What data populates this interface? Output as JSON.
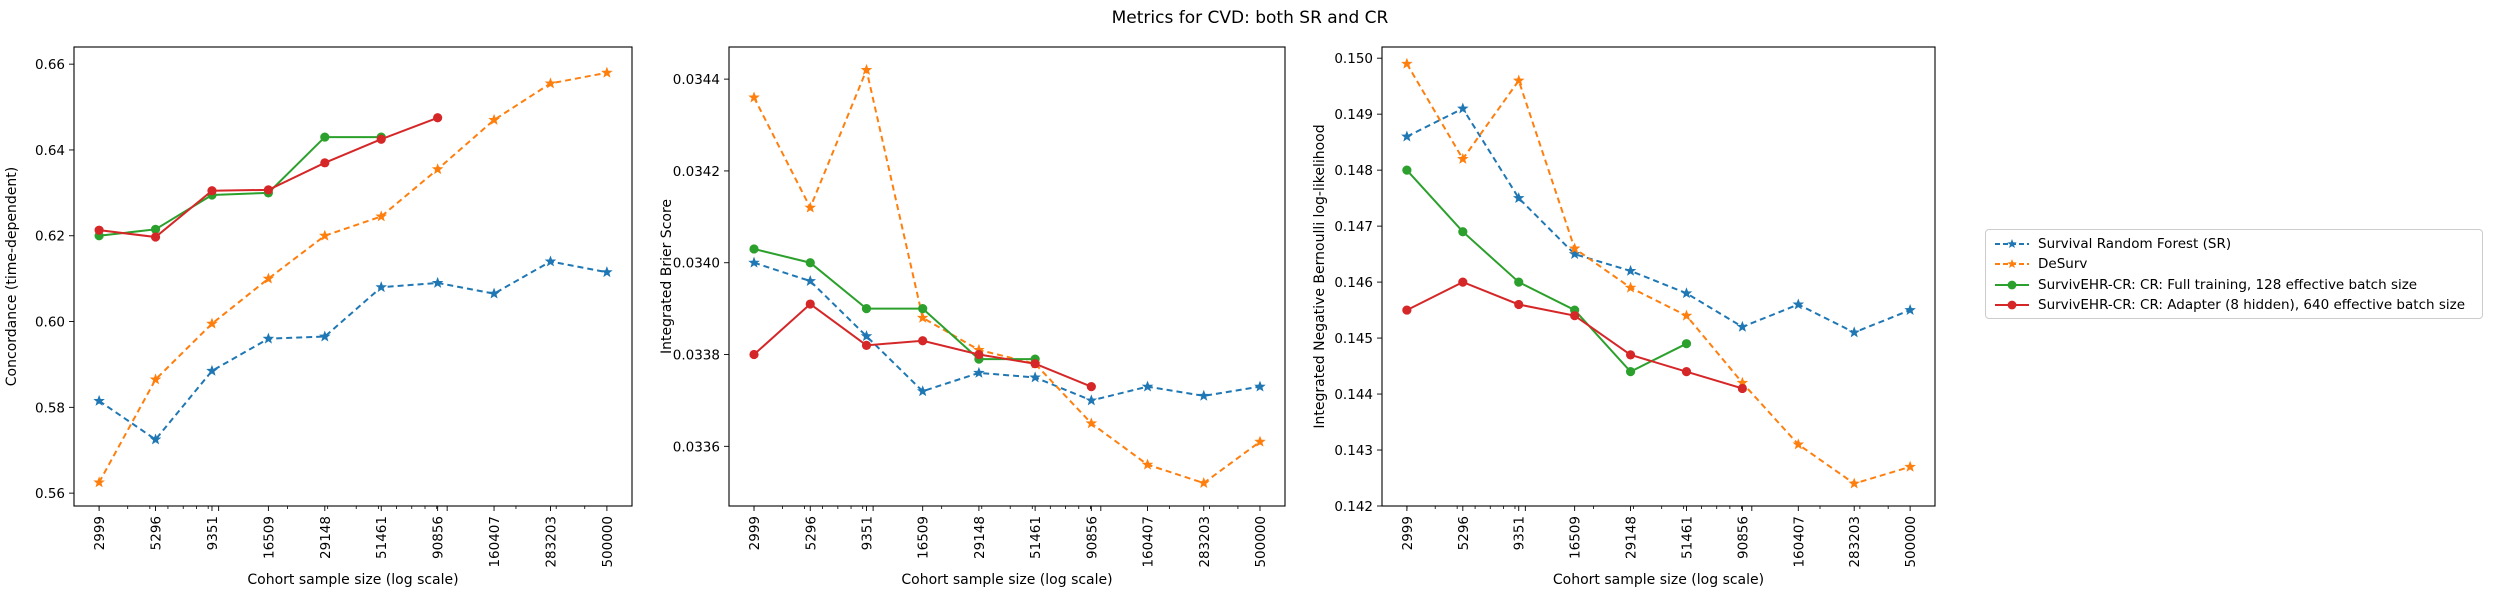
{
  "figure": {
    "title": "Metrics for CVD: both SR and CR"
  },
  "colors": {
    "sr": "#1f77b4",
    "desurv": "#ff7f0e",
    "full": "#2ca02c",
    "adapter": "#d62728"
  },
  "legend": [
    {
      "label": "Survival Random Forest (SR)",
      "color": "#1f77b4",
      "style": "dashed",
      "marker": "star"
    },
    {
      "label": "DeSurv",
      "color": "#ff7f0e",
      "style": "dashed",
      "marker": "star"
    },
    {
      "label": "SurvivEHR-CR: CR: Full training, 128 effective batch size",
      "color": "#2ca02c",
      "style": "solid",
      "marker": "circle"
    },
    {
      "label": "SurvivEHR-CR: CR: Adapter (8 hidden), 640 effective batch size",
      "color": "#d62728",
      "style": "solid",
      "marker": "circle"
    }
  ],
  "chart_data": [
    {
      "type": "line",
      "xlabel": "Cohort sample size (log scale)",
      "ylabel": "Concordance (time-dependent)",
      "x_scale": "log",
      "x_ticks": [
        "2999",
        "5296",
        "9351",
        "16509",
        "29148",
        "51461",
        "90856",
        "160407",
        "283203",
        "500000"
      ],
      "ylim": [
        0.557,
        0.664
      ],
      "y_ticks": [
        "0.56",
        "0.58",
        "0.60",
        "0.62",
        "0.64",
        "0.66"
      ],
      "grid": false,
      "series": [
        {
          "name": "Survival Random Forest (SR)",
          "x": [
            2999,
            5296,
            9351,
            16509,
            29148,
            51461,
            90856,
            160407,
            283203,
            500000
          ],
          "values": [
            0.5815,
            0.5725,
            0.5885,
            0.596,
            0.5965,
            0.608,
            0.609,
            0.6065,
            0.614,
            0.6115
          ]
        },
        {
          "name": "DeSurv",
          "x": [
            2999,
            5296,
            9351,
            16509,
            29148,
            51461,
            90856,
            160407,
            283203,
            500000
          ],
          "values": [
            0.5625,
            0.5865,
            0.5995,
            0.61,
            0.62,
            0.6245,
            0.6355,
            0.647,
            0.6555,
            0.658
          ]
        },
        {
          "name": "SurvivEHR-CR: CR: Full training, 128 effective batch size",
          "x": [
            2999,
            5296,
            9351,
            16509,
            29148,
            51461
          ],
          "values": [
            0.62,
            0.6215,
            0.6295,
            0.63,
            0.643,
            0.643
          ]
        },
        {
          "name": "SurvivEHR-CR: CR: Adapter (8 hidden), 640 effective batch size",
          "x": [
            2999,
            5296,
            9351,
            16509,
            29148,
            51461,
            90856
          ],
          "values": [
            0.6213,
            0.6197,
            0.6305,
            0.6307,
            0.637,
            0.6425,
            0.6475
          ]
        }
      ]
    },
    {
      "type": "line",
      "xlabel": "Cohort sample size (log scale)",
      "ylabel": "Integrated Brier Score",
      "x_scale": "log",
      "x_ticks": [
        "2999",
        "5296",
        "9351",
        "16509",
        "29148",
        "51461",
        "90856",
        "160407",
        "283203",
        "500000"
      ],
      "ylim": [
        0.03347,
        0.03447
      ],
      "y_ticks": [
        "0.0336",
        "0.0338",
        "0.0340",
        "0.0342",
        "0.0344"
      ],
      "grid": false,
      "series": [
        {
          "name": "Survival Random Forest (SR)",
          "x": [
            2999,
            5296,
            9351,
            16509,
            29148,
            51461,
            90856,
            160407,
            283203,
            500000
          ],
          "values": [
            0.034,
            0.03396,
            0.03384,
            0.03372,
            0.03376,
            0.03375,
            0.0337,
            0.03373,
            0.03371,
            0.03373
          ]
        },
        {
          "name": "DeSurv",
          "x": [
            2999,
            5296,
            9351,
            16509,
            29148,
            51461,
            90856,
            160407,
            283203,
            500000
          ],
          "values": [
            0.03436,
            0.03412,
            0.03442,
            0.03388,
            0.03381,
            0.03378,
            0.03365,
            0.03356,
            0.03352,
            0.03361
          ]
        },
        {
          "name": "SurvivEHR-CR: CR: Full training, 128 effective batch size",
          "x": [
            2999,
            5296,
            9351,
            16509,
            29148,
            51461
          ],
          "values": [
            0.03403,
            0.034,
            0.0339,
            0.0339,
            0.03379,
            0.03379
          ]
        },
        {
          "name": "SurvivEHR-CR: CR: Adapter (8 hidden), 640 effective batch size",
          "x": [
            2999,
            5296,
            9351,
            16509,
            29148,
            51461,
            90856
          ],
          "values": [
            0.0338,
            0.03391,
            0.03382,
            0.03383,
            0.0338,
            0.03378,
            0.03373
          ]
        }
      ]
    },
    {
      "type": "line",
      "xlabel": "Cohort sample size (log scale)",
      "ylabel": "Integrated Negative Bernoulli log-likelihood",
      "x_scale": "log",
      "x_ticks": [
        "2999",
        "5296",
        "9351",
        "16509",
        "29148",
        "51461",
        "90856",
        "160407",
        "283203",
        "500000"
      ],
      "ylim": [
        0.142,
        0.1502
      ],
      "y_ticks": [
        "0.142",
        "0.143",
        "0.144",
        "0.145",
        "0.146",
        "0.147",
        "0.148",
        "0.149",
        "0.150"
      ],
      "grid": false,
      "series": [
        {
          "name": "Survival Random Forest (SR)",
          "x": [
            2999,
            5296,
            9351,
            16509,
            29148,
            51461,
            90856,
            160407,
            283203,
            500000
          ],
          "values": [
            0.1486,
            0.1491,
            0.1475,
            0.1465,
            0.1462,
            0.1458,
            0.1452,
            0.1456,
            0.1451,
            0.1455
          ]
        },
        {
          "name": "DeSurv",
          "x": [
            2999,
            5296,
            9351,
            16509,
            29148,
            51461,
            90856,
            160407,
            283203,
            500000
          ],
          "values": [
            0.1499,
            0.1482,
            0.1496,
            0.1466,
            0.1459,
            0.1454,
            0.1442,
            0.1431,
            0.1424,
            0.1427
          ]
        },
        {
          "name": "SurvivEHR-CR: CR: Full training, 128 effective batch size",
          "x": [
            2999,
            5296,
            9351,
            16509,
            29148,
            51461
          ],
          "values": [
            0.148,
            0.1469,
            0.146,
            0.1455,
            0.1444,
            0.1449
          ]
        },
        {
          "name": "SurvivEHR-CR: CR: Adapter (8 hidden), 640 effective batch size",
          "x": [
            2999,
            5296,
            9351,
            16509,
            29148,
            51461,
            90856
          ],
          "values": [
            0.1455,
            0.146,
            0.1456,
            0.1454,
            0.1447,
            0.1444,
            0.1441
          ]
        }
      ]
    }
  ]
}
